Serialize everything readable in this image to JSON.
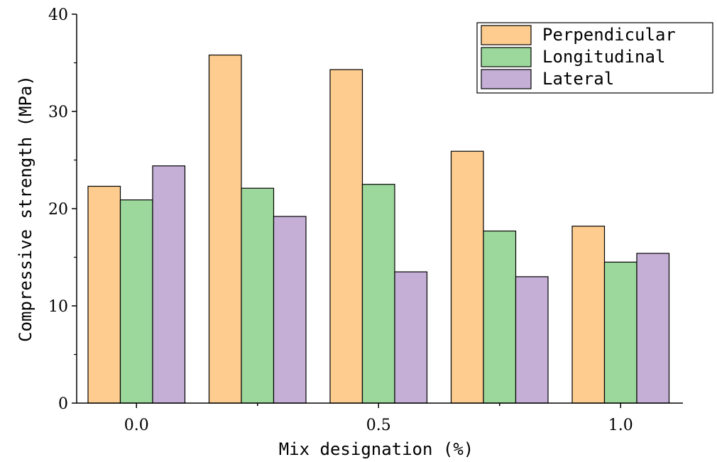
{
  "chart_data": {
    "type": "bar",
    "title": "",
    "xlabel": "Mix designation (%)",
    "ylabel": "Compressive strength (MPa)",
    "ylim": [
      0,
      40
    ],
    "yticks": [
      "0",
      "10",
      "20",
      "30",
      "40"
    ],
    "xtick_labels": [
      "0.0",
      "",
      "0.5",
      "",
      "1.0"
    ],
    "legend_position": "top-right",
    "grid": false,
    "series": [
      {
        "name": "Perpendicular",
        "color": "#FDCC8E",
        "values": [
          22.3,
          35.8,
          34.3,
          25.9,
          18.2
        ]
      },
      {
        "name": "Longitudinal",
        "color": "#9CD89C",
        "values": [
          20.9,
          22.1,
          22.5,
          17.7,
          14.5
        ]
      },
      {
        "name": "Lateral",
        "color": "#C5AFD6",
        "values": [
          24.4,
          19.2,
          13.5,
          13.0,
          15.4
        ]
      }
    ]
  }
}
